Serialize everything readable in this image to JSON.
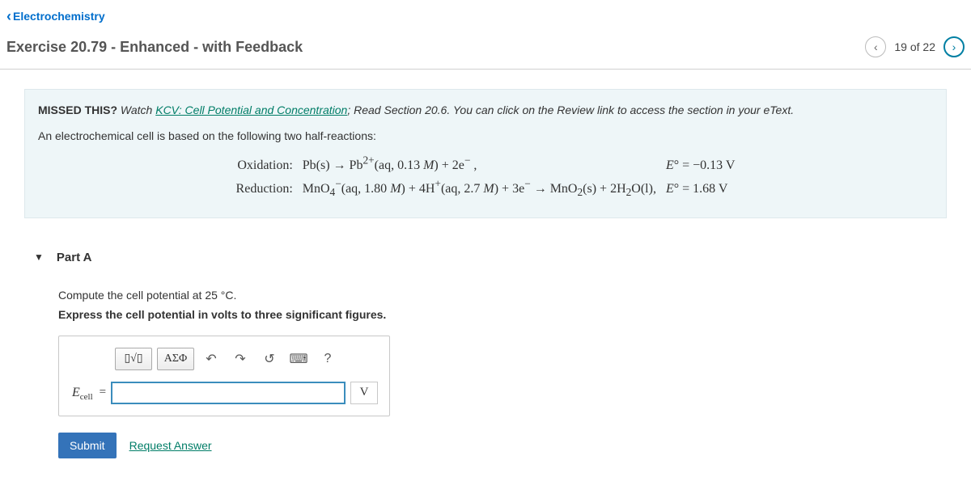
{
  "nav": {
    "back_label": "Electrochemistry"
  },
  "header": {
    "title": "Exercise 20.79 - Enhanced - with Feedback",
    "pager": {
      "current": 19,
      "total": 22,
      "text": "19 of 22"
    }
  },
  "intro": {
    "missed_label": "MISSED THIS?",
    "watch_label": "Watch",
    "kcv_link": "KCV: Cell Potential and Concentration",
    "read_text": "; Read Section 20.6. You can click on the Review link to access the section in your eText.",
    "setup_text": "An electrochemical cell is based on the following two half-reactions:",
    "equations": {
      "ox_label": "Oxidation:",
      "ox_body_html": "Pb(s) → Pb<sup>2+</sup>(aq, 0.13 <i>M</i>) + 2e<sup>−</sup> ,",
      "ox_pot_html": "<i>E</i>° = −0.13 V",
      "red_label": "Reduction:",
      "red_body_html": "MnO<sub>4</sub><sup>−</sup>(aq, 1.80 <i>M</i>) + 4H<sup>+</sup>(aq, 2.7 <i>M</i>) + 3e<sup>−</sup> → MnO<sub>2</sub>(s) + 2H<sub>2</sub>O(l),",
      "red_pot_html": "<i>E</i>° = 1.68 V"
    }
  },
  "part": {
    "label": "Part A",
    "instruction1": "Compute the cell potential at 25 °C.",
    "instruction2": "Express the cell potential in volts to three significant figures.",
    "toolbar": {
      "templates": "▯√▯",
      "greek": "ΑΣΦ",
      "undo": "↶",
      "redo": "↷",
      "reset": "↺",
      "keyboard": "⌨",
      "help": "?"
    },
    "answer": {
      "var_label_html": "<i>E</i><sub>cell</sub>",
      "equals": "=",
      "value": "",
      "unit": "V"
    },
    "submit_label": "Submit",
    "request_label": "Request Answer"
  }
}
